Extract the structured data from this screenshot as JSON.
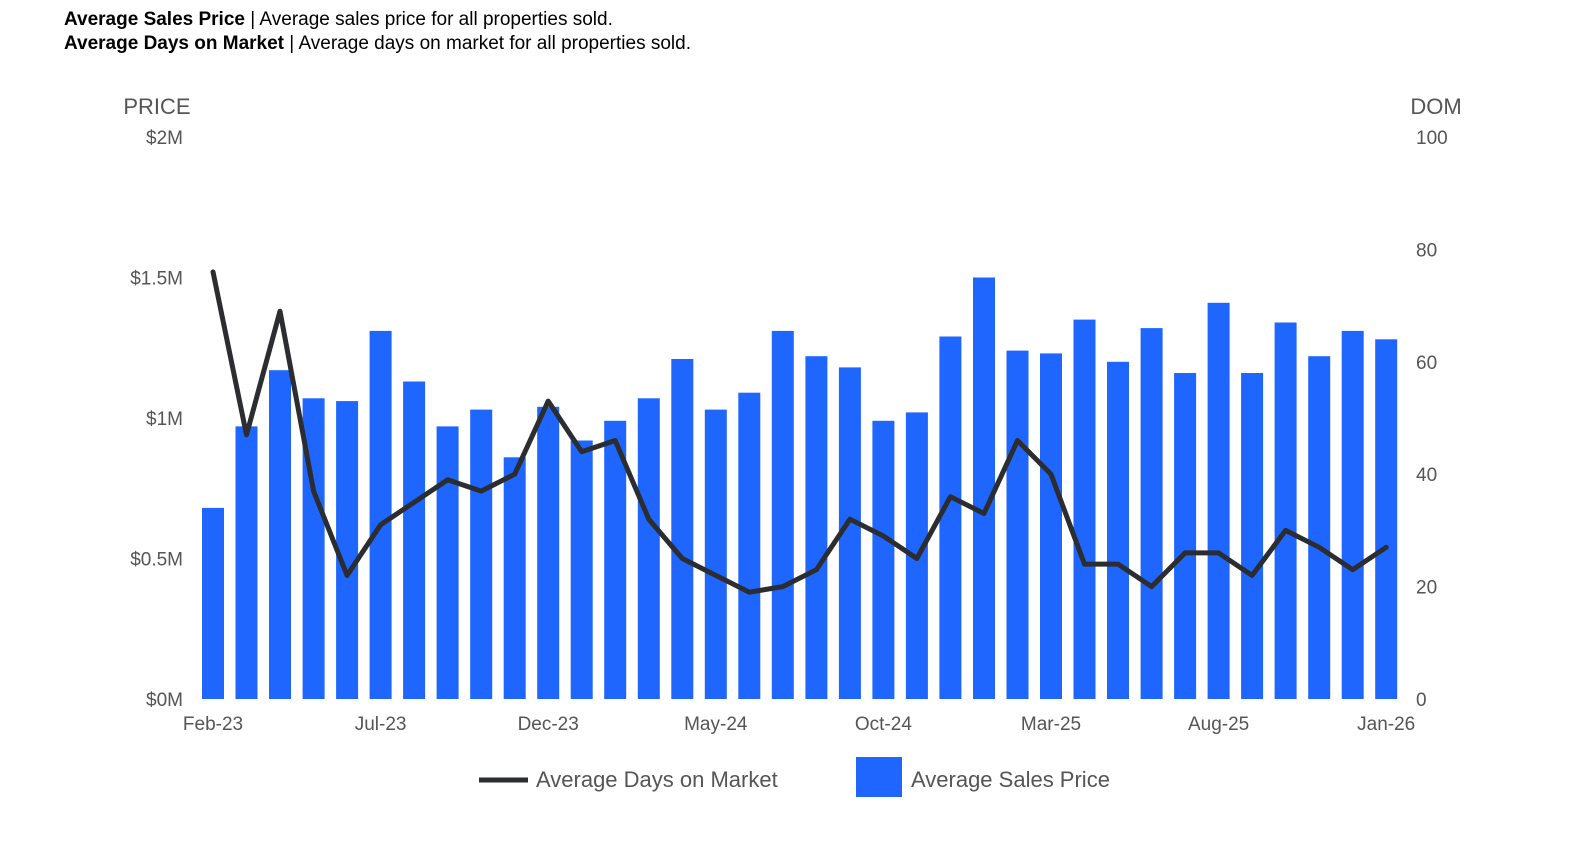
{
  "header": {
    "line1_bold": "Average Sales Price",
    "line1_rest": " | Average sales price for all properties sold.",
    "line2_bold": "Average Days on Market",
    "line2_rest": " | Average days on market for all properties sold."
  },
  "colors": {
    "bar": "#1f66ff",
    "line": "#2b2d31",
    "text": "#555555"
  },
  "chart_data": {
    "type": "bar+line",
    "left_axis_title": "PRICE",
    "right_axis_title": "DOM",
    "left_ticks": [
      "$0M",
      "$0.5M",
      "$1M",
      "$1.5M",
      "$2M"
    ],
    "left_tick_values": [
      0,
      0.5,
      1,
      1.5,
      2
    ],
    "right_ticks": [
      "0",
      "20",
      "40",
      "60",
      "80",
      "100"
    ],
    "right_tick_values": [
      0,
      20,
      40,
      60,
      80,
      100
    ],
    "ylim_left": [
      0,
      2
    ],
    "ylim_right": [
      0,
      100
    ],
    "x_tick_labels": [
      "Feb-23",
      "Jul-23",
      "Dec-23",
      "May-24",
      "Oct-24",
      "Mar-25",
      "Aug-25",
      "Jan-26"
    ],
    "x_tick_index": [
      0,
      5,
      10,
      15,
      20,
      25,
      30,
      35
    ],
    "categories": [
      "Feb-23",
      "Mar-23",
      "Apr-23",
      "May-23",
      "Jun-23",
      "Jul-23",
      "Aug-23",
      "Sep-23",
      "Oct-23",
      "Nov-23",
      "Dec-23",
      "Jan-24",
      "Feb-24",
      "Mar-24",
      "Apr-24",
      "May-24",
      "Jun-24",
      "Jul-24",
      "Aug-24",
      "Sep-24",
      "Oct-24",
      "Nov-24",
      "Dec-24",
      "Jan-25",
      "Feb-25",
      "Mar-25",
      "Apr-25",
      "May-25",
      "Jun-25",
      "Jul-25",
      "Aug-25",
      "Sep-25",
      "Oct-25",
      "Nov-25",
      "Dec-25",
      "Jan-26"
    ],
    "series": [
      {
        "name": "Average Sales Price",
        "type": "bar",
        "axis": "left",
        "values": [
          0.68,
          0.97,
          1.17,
          1.07,
          1.06,
          1.31,
          1.13,
          0.97,
          1.03,
          0.86,
          1.04,
          0.92,
          0.99,
          1.07,
          1.21,
          1.03,
          1.09,
          1.31,
          1.22,
          1.18,
          0.99,
          1.02,
          1.29,
          1.5,
          1.24,
          1.23,
          1.35,
          1.2,
          1.32,
          1.16,
          1.41,
          1.16,
          1.34,
          1.22,
          1.31,
          1.28
        ]
      },
      {
        "name": "Average Days on Market",
        "type": "line",
        "axis": "right",
        "values": [
          76,
          47,
          69,
          37,
          22,
          31,
          35,
          39,
          37,
          40,
          53,
          44,
          46,
          32,
          25,
          22,
          19,
          20,
          23,
          32,
          29,
          25,
          36,
          33,
          46,
          40,
          24,
          24,
          20,
          26,
          26,
          22,
          30,
          27,
          23,
          27
        ]
      }
    ],
    "legend": [
      "Average Days on Market",
      "Average Sales Price"
    ],
    "legend_position": "bottom"
  }
}
